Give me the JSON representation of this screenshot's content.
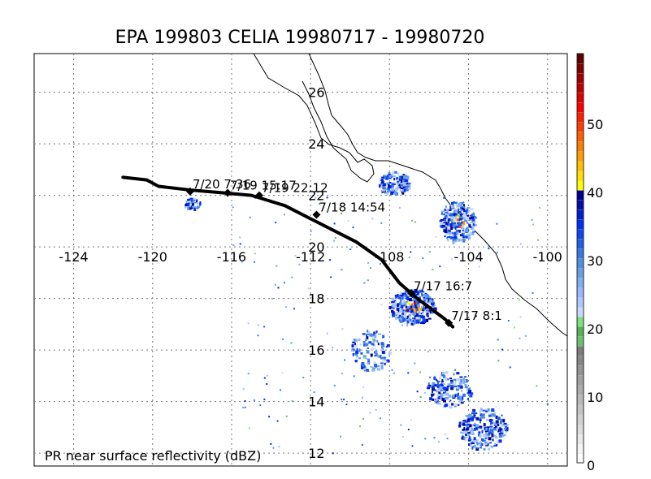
{
  "title": "EPA 199803 CELIA 19980717 - 19980720",
  "footer": "PR near surface reflectivity (dBZ)",
  "map": {
    "lon_range": [
      -126,
      -99
    ],
    "lat_range": [
      11.5,
      27.5
    ],
    "lon_ticks": [
      -124,
      -120,
      -116,
      -112,
      -108,
      -104,
      -100
    ],
    "lat_ticks": [
      12,
      14,
      16,
      18,
      20,
      22,
      24,
      26
    ],
    "lon_tick_labels": [
      "-124",
      "-120",
      "-116",
      "-112",
      "-108",
      "-104",
      "-100"
    ],
    "lat_tick_labels": [
      "12",
      "14",
      "16",
      "18",
      "20",
      "22",
      "24",
      "26"
    ],
    "gridlines": true
  },
  "storm_track": {
    "line": [
      [
        -121.5,
        22.7
      ],
      [
        -120.3,
        22.6
      ],
      [
        -119.7,
        22.35
      ],
      [
        -118.0,
        22.2
      ],
      [
        -116.5,
        22.1
      ],
      [
        -115.0,
        22.0
      ],
      [
        -113.3,
        21.6
      ],
      [
        -111.5,
        20.9
      ],
      [
        -109.7,
        20.2
      ],
      [
        -108.4,
        19.5
      ],
      [
        -107.5,
        18.6
      ],
      [
        -106.6,
        18.0
      ],
      [
        -105.9,
        17.6
      ],
      [
        -105.2,
        17.2
      ],
      [
        -104.8,
        16.9
      ]
    ],
    "points": [
      {
        "lon": -105.0,
        "lat": 17.05,
        "label": "7/17 8:1"
      },
      {
        "lon": -106.9,
        "lat": 18.2,
        "label": "7/17 16:7"
      },
      {
        "lon": -111.7,
        "lat": 21.25,
        "label": "7/18 14:54"
      },
      {
        "lon": -114.6,
        "lat": 22.0,
        "label": "7/19 22:12"
      },
      {
        "lon": -116.2,
        "lat": 22.1,
        "label": "7/19 15:17"
      },
      {
        "lon": -118.1,
        "lat": 22.15,
        "label": "7/20 7:36"
      }
    ]
  },
  "colorbar": {
    "tick_values": [
      0,
      10,
      20,
      30,
      40,
      50
    ],
    "tick_labels": [
      "0",
      "10",
      "20",
      "30",
      "40",
      "50"
    ],
    "range": [
      0,
      60
    ],
    "colors": [
      "#ffffff",
      "#f4f4f4",
      "#e8e8e8",
      "#dcdcdc",
      "#d0d0d0",
      "#c4c4c4",
      "#b8b8b8",
      "#acacac",
      "#a0a0a0",
      "#949494",
      "#888888",
      "#7c7c7c",
      "#6cc070",
      "#58b05c",
      "#7ee07e",
      "#c8d8ff",
      "#b0c8ff",
      "#98b8ff",
      "#80b0f0",
      "#68a0e8",
      "#5090e0",
      "#3878e0",
      "#2060e8",
      "#1048f0",
      "#0030f8",
      "#0020d0",
      "#0010a8",
      "#000090",
      "#ffff00",
      "#ffe000",
      "#ffc000",
      "#ffa000",
      "#ff8000",
      "#ff6000",
      "#ff4000",
      "#ff2000",
      "#ff0000",
      "#e00000",
      "#c00000",
      "#a00000",
      "#800000",
      "#600000"
    ]
  }
}
